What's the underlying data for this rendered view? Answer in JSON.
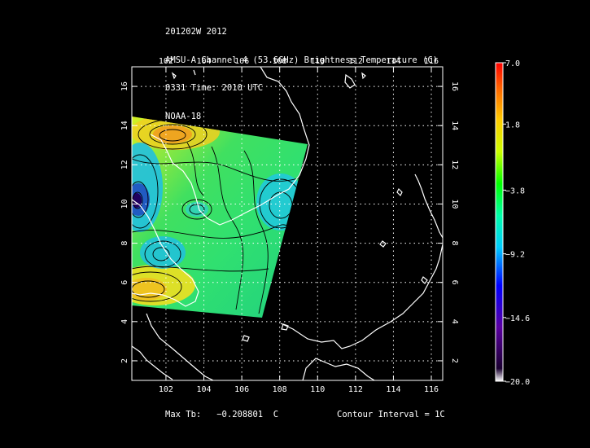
{
  "header": {
    "line1": "201202W 2012",
    "line2": "AMSU-A Channel 4 (53.6GHz) Brightness Temperature (C)",
    "line3": "0331 Time: 2010 UTC",
    "line4": "NOAA-18"
  },
  "map": {
    "lon_ticks": [
      "102",
      "104",
      "106",
      "108",
      "110",
      "112",
      "114",
      "116"
    ],
    "lat_ticks": [
      "2",
      "4",
      "6",
      "8",
      "10",
      "12",
      "14",
      "16"
    ],
    "lon_range": [
      100.2,
      116.6
    ],
    "lat_range": [
      1.0,
      17.0
    ]
  },
  "colorbar": {
    "labels": [
      "7.0",
      "1.8",
      "−3.8",
      "−9.2",
      "−14.6",
      "−20.0"
    ],
    "range": [
      -20.0,
      7.0
    ],
    "colors": [
      "#000000",
      "#4b0082",
      "#0000ff",
      "#00ffff",
      "#00ff00",
      "#ffff00",
      "#ff8000",
      "#ff0000"
    ]
  },
  "footer": {
    "max_label": "Max Tb:",
    "max_value": "−0.208801",
    "max_unit": "C",
    "contour_interval": "Contour Interval = 1C"
  },
  "colors": {
    "background": "#000000",
    "foreground": "#ffffff"
  }
}
